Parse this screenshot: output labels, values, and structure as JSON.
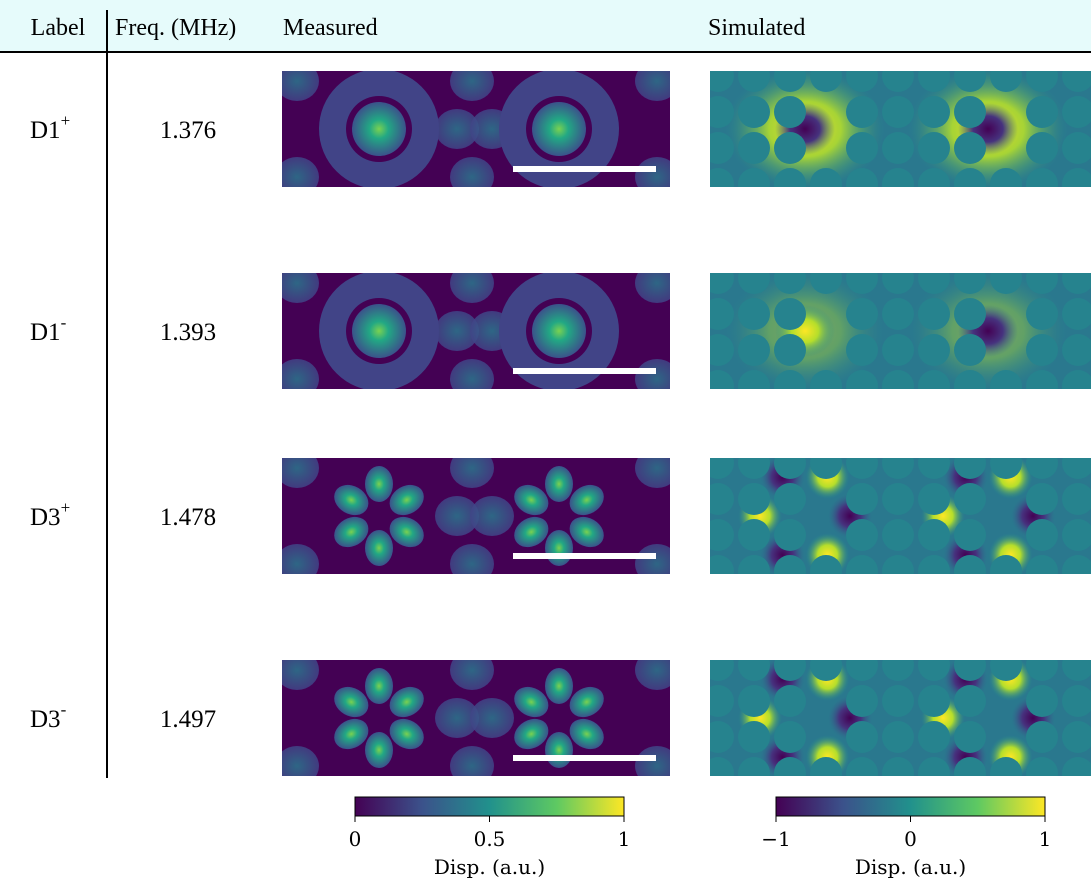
{
  "header": {
    "columns": [
      "Label",
      "Freq. (MHz)",
      "Measured",
      "Simulated"
    ]
  },
  "rows": [
    {
      "label": "D1",
      "sign": "+",
      "frequency": "1.376"
    },
    {
      "label": "D1",
      "sign": "-",
      "frequency": "1.393"
    },
    {
      "label": "D3",
      "sign": "+",
      "frequency": "1.478"
    },
    {
      "label": "D3",
      "sign": "-",
      "frequency": "1.497"
    }
  ],
  "colorbars": [
    {
      "lim": [
        0,
        1
      ],
      "ticks": [
        0,
        0.5,
        1
      ],
      "label": "Disp. (a.u.)"
    },
    {
      "lim": [
        -1,
        1
      ],
      "ticks": [
        {
          "value": -1,
          "label": "−1"
        },
        0,
        1
      ],
      "label": "Disp. (a.u.)"
    }
  ]
}
